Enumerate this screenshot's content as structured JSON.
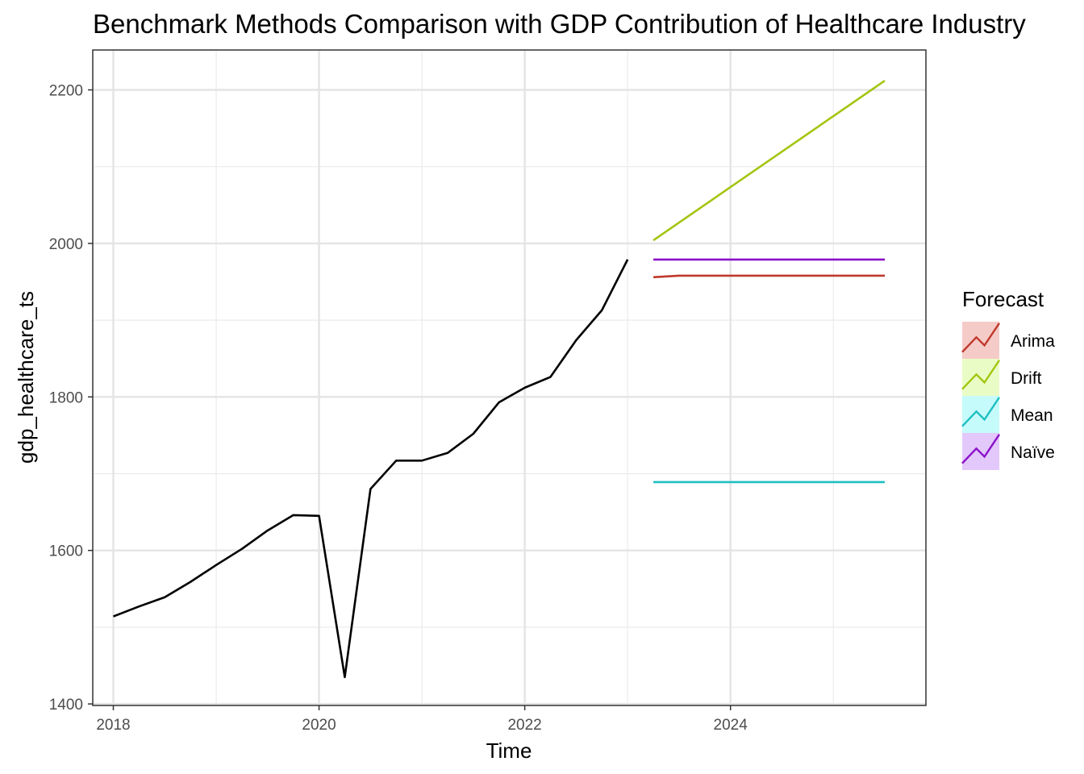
{
  "chart_data": {
    "type": "line",
    "title": "Benchmark Methods Comparison with GDP Contribution of Healthcare Industry",
    "xlabel": "Time",
    "ylabel": "gdp_healthcare_ts",
    "xlim": [
      2017.8,
      2025.9
    ],
    "ylim": [
      1398,
      2252
    ],
    "x_ticks": [
      2018,
      2020,
      2022,
      2024
    ],
    "x_tick_labels": [
      "2018",
      "2020",
      "2022",
      "2024"
    ],
    "y_ticks": [
      1400,
      1600,
      1800,
      2000,
      2200
    ],
    "y_tick_labels": [
      "1400",
      "1600",
      "1800",
      "2000",
      "2200"
    ],
    "grid": true,
    "legend_position": "right",
    "legend_title": "Forecast",
    "observed": {
      "color": "#000000",
      "x": [
        2018.0,
        2018.25,
        2018.5,
        2018.75,
        2019.0,
        2019.25,
        2019.5,
        2019.75,
        2020.0,
        2020.25,
        2020.5,
        2020.75,
        2021.0,
        2021.25,
        2021.5,
        2021.75,
        2022.0,
        2022.25,
        2022.5,
        2022.75,
        2023.0
      ],
      "values": [
        1514,
        1527,
        1539,
        1559,
        1581,
        1602,
        1626,
        1646,
        1645,
        1435,
        1680,
        1717,
        1717,
        1727,
        1752,
        1793,
        1812,
        1826,
        1874,
        1913,
        1979
      ]
    },
    "series": [
      {
        "name": "Arima",
        "color": "#c0392b",
        "fill": "#f5cbc8",
        "x": [
          2023.25,
          2023.5,
          2025.5
        ],
        "values": [
          1956,
          1958,
          1958
        ]
      },
      {
        "name": "Drift",
        "color": "#a3c510",
        "fill": "#eafcc6",
        "x": [
          2023.25,
          2025.5
        ],
        "values": [
          2004,
          2212
        ]
      },
      {
        "name": "Mean",
        "color": "#1fbfc3",
        "fill": "#c6fbfb",
        "x": [
          2023.25,
          2025.5
        ],
        "values": [
          1689,
          1689
        ]
      },
      {
        "name": "Naïve",
        "color": "#8b10c8",
        "fill": "#e3c8fb",
        "x": [
          2023.25,
          2025.5
        ],
        "values": [
          1979,
          1979
        ]
      }
    ]
  }
}
